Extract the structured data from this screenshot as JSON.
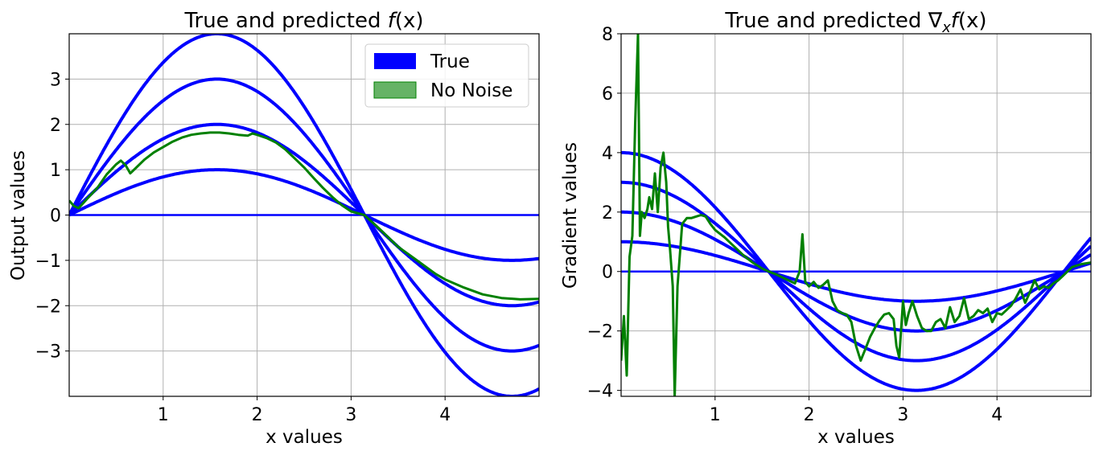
{
  "chart_data": [
    {
      "type": "line",
      "title_prefix": "True and predicted ",
      "title_func": "f",
      "title_suffix": "(x)",
      "xlabel": "x values",
      "ylabel": "Output values",
      "xlim": [
        0,
        5
      ],
      "ylim": [
        -4,
        4
      ],
      "xticks": [
        1,
        2,
        3,
        4
      ],
      "yticks": [
        -3,
        -2,
        -1,
        0,
        1,
        2,
        3
      ],
      "xtick_labels": [
        "1",
        "2",
        "3",
        "4"
      ],
      "ytick_labels": [
        "−3",
        "−2",
        "−1",
        "0",
        "1",
        "2",
        "3"
      ],
      "grid": true,
      "legend": {
        "position": "top-right",
        "entries": [
          {
            "label": "True",
            "color": "#0000ff"
          },
          {
            "label": "No Noise",
            "color": "#008000"
          }
        ]
      },
      "series": [
        {
          "name": "True (a=0)",
          "function": "a*sin(x)",
          "a": 0,
          "color": "#0000ff"
        },
        {
          "name": "True (a=1)",
          "function": "a*sin(x)",
          "a": 1,
          "color": "#0000ff"
        },
        {
          "name": "True (a=2)",
          "function": "a*sin(x)",
          "a": 2,
          "color": "#0000ff"
        },
        {
          "name": "True (a=3)",
          "function": "a*sin(x)",
          "a": 3,
          "color": "#0000ff"
        },
        {
          "name": "True (a=4)",
          "function": "a*sin(x)",
          "a": 4,
          "color": "#0000ff"
        },
        {
          "name": "No Noise",
          "color": "#008000",
          "x": [
            0,
            0.05,
            0.1,
            0.2,
            0.3,
            0.4,
            0.5,
            0.55,
            0.6,
            0.65,
            0.7,
            0.8,
            0.9,
            1.0,
            1.1,
            1.2,
            1.3,
            1.4,
            1.5,
            1.6,
            1.7,
            1.8,
            1.9,
            1.95,
            2.0,
            2.1,
            2.2,
            2.3,
            2.4,
            2.5,
            2.6,
            2.7,
            2.8,
            2.9,
            3.0,
            3.14,
            3.3,
            3.5,
            3.7,
            3.9,
            4.0,
            4.2,
            4.4,
            4.6,
            4.8,
            5.0
          ],
          "y": [
            0.32,
            0.2,
            0.15,
            0.38,
            0.6,
            0.9,
            1.12,
            1.2,
            1.1,
            0.92,
            1.02,
            1.22,
            1.38,
            1.5,
            1.62,
            1.71,
            1.77,
            1.8,
            1.82,
            1.82,
            1.8,
            1.77,
            1.75,
            1.8,
            1.77,
            1.7,
            1.6,
            1.45,
            1.25,
            1.05,
            0.82,
            0.6,
            0.4,
            0.22,
            0.08,
            0.0,
            -0.3,
            -0.7,
            -1.0,
            -1.3,
            -1.42,
            -1.6,
            -1.75,
            -1.83,
            -1.86,
            -1.85
          ]
        }
      ]
    },
    {
      "type": "line",
      "title_prefix": "True and predicted  ",
      "title_nabla": "∇",
      "title_sub": "x",
      "title_func": "f",
      "title_suffix": "(x)",
      "xlabel": "x values",
      "ylabel": "Gradient values",
      "xlim": [
        0,
        5
      ],
      "ylim": [
        -4.2,
        8
      ],
      "xticks": [
        1,
        2,
        3,
        4
      ],
      "yticks": [
        -4,
        -2,
        0,
        2,
        4,
        6,
        8
      ],
      "xtick_labels": [
        "1",
        "2",
        "3",
        "4"
      ],
      "ytick_labels": [
        "−4",
        "−2",
        "0",
        "2",
        "4",
        "6",
        "8"
      ],
      "grid": true,
      "series": [
        {
          "name": "True (a=0)",
          "function": "a*cos(x)",
          "a": 0,
          "color": "#0000ff"
        },
        {
          "name": "True (a=1)",
          "function": "a*cos(x)",
          "a": 1,
          "color": "#0000ff"
        },
        {
          "name": "True (a=2)",
          "function": "a*cos(x)",
          "a": 2,
          "color": "#0000ff"
        },
        {
          "name": "True (a=3)",
          "function": "a*cos(x)",
          "a": 3,
          "color": "#0000ff"
        },
        {
          "name": "True (a=4)",
          "function": "a*cos(x)",
          "a": 4,
          "color": "#0000ff"
        },
        {
          "name": "No Noise",
          "color": "#008000",
          "x": [
            0,
            0.03,
            0.06,
            0.09,
            0.12,
            0.15,
            0.18,
            0.2,
            0.22,
            0.25,
            0.28,
            0.3,
            0.33,
            0.36,
            0.39,
            0.42,
            0.45,
            0.48,
            0.5,
            0.52,
            0.55,
            0.57,
            0.6,
            0.65,
            0.7,
            0.75,
            0.8,
            0.85,
            0.9,
            0.95,
            1.0,
            1.1,
            1.2,
            1.3,
            1.4,
            1.5,
            1.57,
            1.65,
            1.75,
            1.85,
            1.9,
            1.93,
            1.96,
            2.0,
            2.05,
            2.1,
            2.15,
            2.2,
            2.25,
            2.3,
            2.35,
            2.4,
            2.45,
            2.5,
            2.55,
            2.6,
            2.65,
            2.7,
            2.75,
            2.8,
            2.85,
            2.9,
            2.93,
            2.96,
            3.0,
            3.03,
            3.06,
            3.1,
            3.15,
            3.2,
            3.25,
            3.3,
            3.35,
            3.4,
            3.45,
            3.5,
            3.55,
            3.6,
            3.65,
            3.7,
            3.75,
            3.8,
            3.85,
            3.9,
            3.95,
            4.0,
            4.05,
            4.1,
            4.15,
            4.2,
            4.25,
            4.3,
            4.35,
            4.4,
            4.45,
            4.5,
            4.55,
            4.6,
            4.65,
            4.7,
            4.75,
            4.8,
            4.9,
            5.0
          ],
          "y": [
            -3.0,
            -1.5,
            -3.5,
            0.5,
            1.2,
            5.0,
            8.0,
            1.2,
            2.0,
            1.8,
            2.1,
            2.5,
            2.1,
            3.3,
            2.0,
            3.5,
            4.0,
            3.0,
            1.5,
            0.8,
            -0.5,
            -4.2,
            -0.5,
            1.6,
            1.8,
            1.8,
            1.85,
            1.9,
            1.85,
            1.6,
            1.4,
            1.15,
            0.85,
            0.55,
            0.3,
            0.1,
            0.0,
            -0.1,
            -0.25,
            -0.4,
            0.0,
            1.25,
            -0.35,
            -0.5,
            -0.35,
            -0.55,
            -0.45,
            -0.3,
            -1.0,
            -1.3,
            -1.4,
            -1.45,
            -1.7,
            -2.5,
            -3.0,
            -2.6,
            -2.2,
            -1.9,
            -1.65,
            -1.45,
            -1.4,
            -1.6,
            -2.5,
            -2.9,
            -1.0,
            -1.8,
            -1.4,
            -1.0,
            -1.5,
            -1.9,
            -2.0,
            -2.0,
            -1.7,
            -1.6,
            -1.9,
            -1.2,
            -1.7,
            -1.5,
            -0.9,
            -1.6,
            -1.5,
            -1.3,
            -1.4,
            -1.25,
            -1.7,
            -1.4,
            -1.45,
            -1.3,
            -1.15,
            -0.9,
            -0.6,
            -1.05,
            -0.7,
            -0.3,
            -0.6,
            -0.5,
            -0.55,
            -0.4,
            -0.3,
            -0.15,
            0.0,
            0.15,
            0.25,
            0.3
          ]
        }
      ]
    }
  ]
}
